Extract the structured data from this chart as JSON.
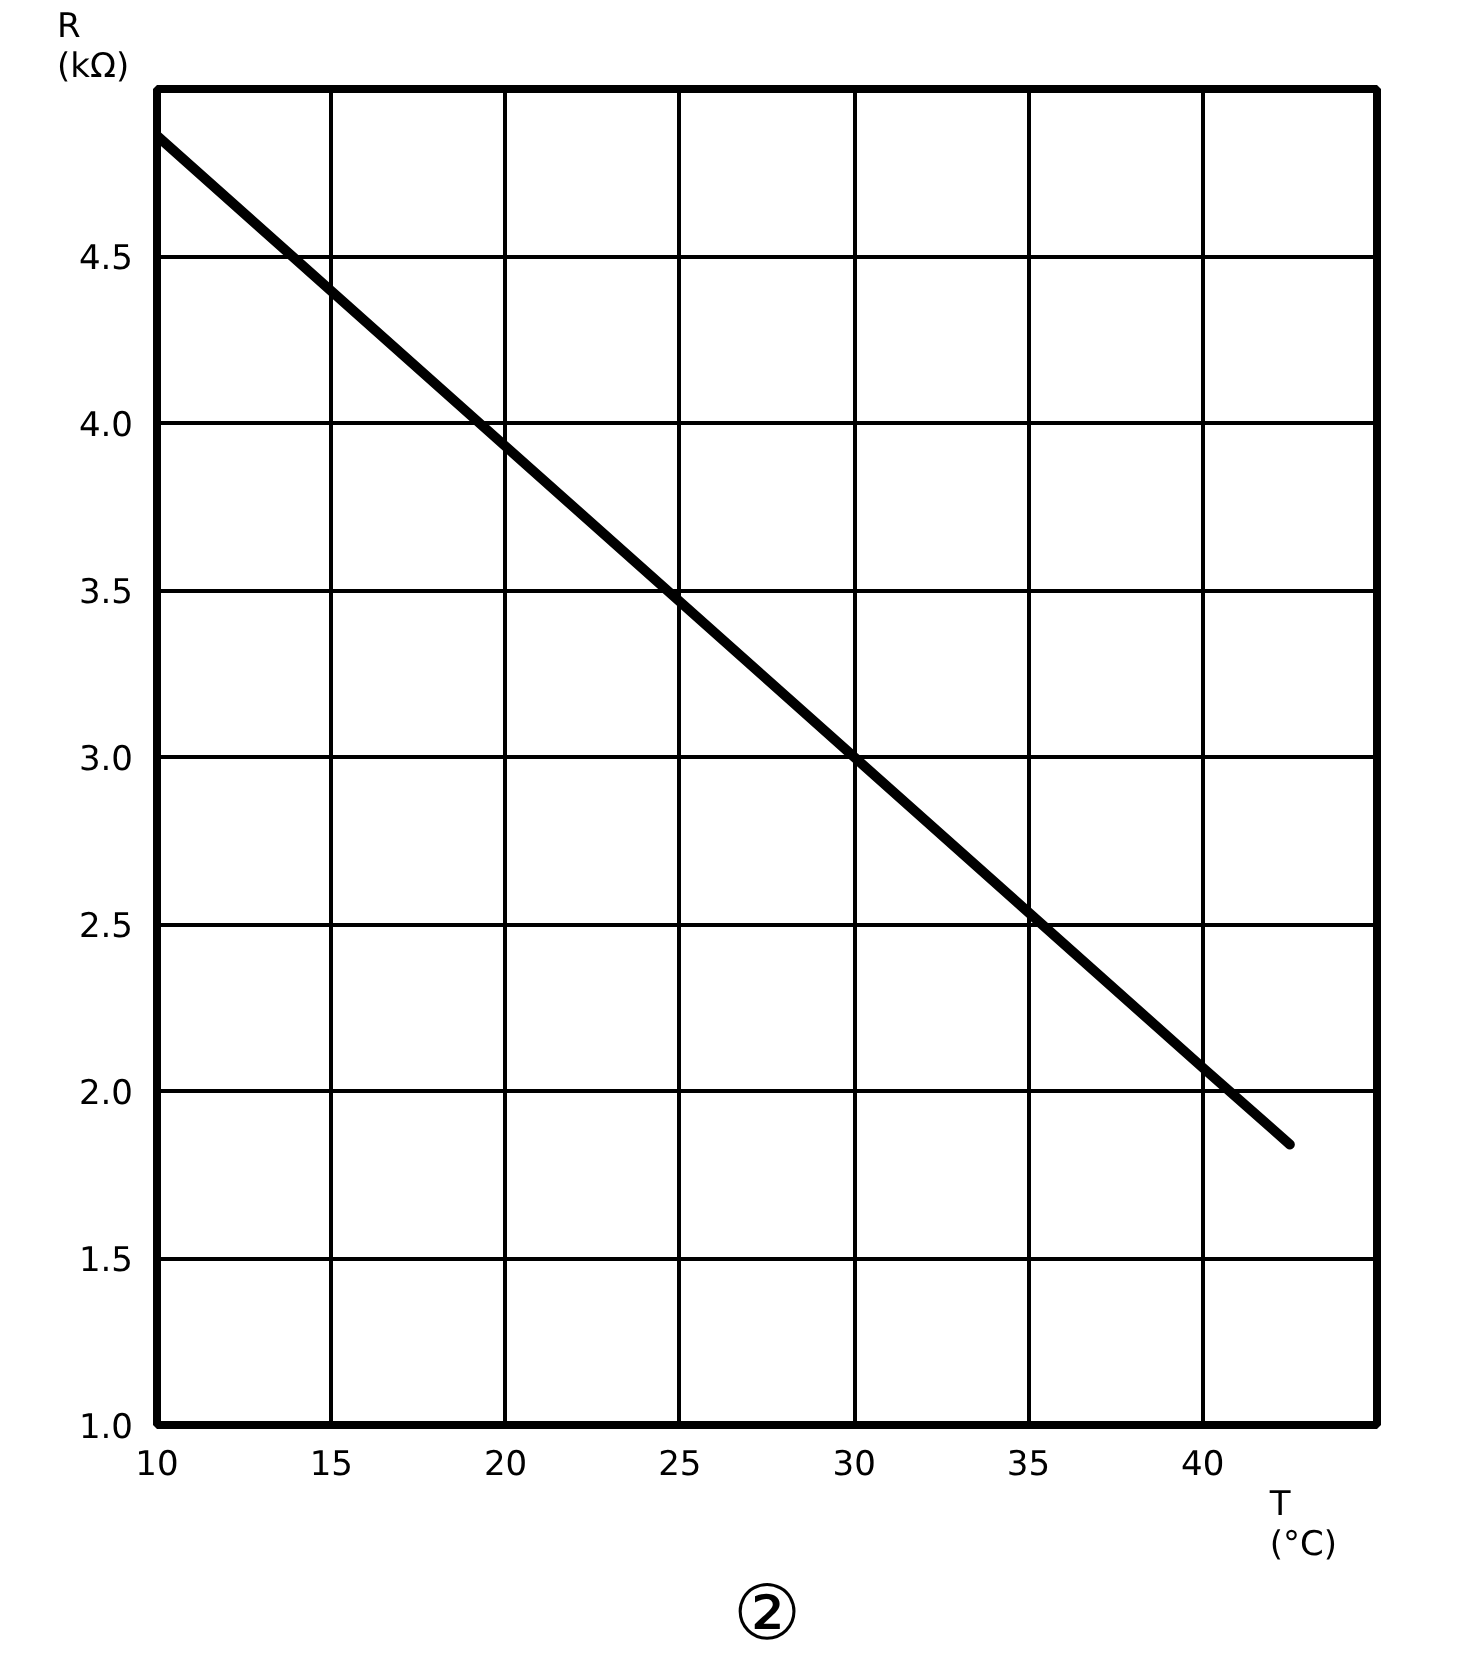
{
  "chart_data": {
    "type": "line",
    "xlabel": "T (°C)",
    "ylabel": "R (kΩ)",
    "annotations": [
      "②"
    ],
    "x": [
      10,
      20,
      30,
      40,
      42.5
    ],
    "series": [
      {
        "color": "#000000",
        "values": [
          4.86,
          3.93,
          3.0,
          2.07,
          1.84
        ]
      }
    ],
    "xlim": [
      10,
      45
    ],
    "ylim": [
      1.0,
      5.0
    ],
    "xticks": [
      10,
      15,
      20,
      25,
      30,
      35,
      40,
      {
        "value": 45,
        "label": null
      }
    ],
    "yticks": [
      {
        "value": 1,
        "label": "1.0"
      },
      1.5,
      {
        "value": 2,
        "label": "2.0"
      },
      2.5,
      {
        "value": 3,
        "label": "3.0"
      },
      3.5,
      {
        "value": 4,
        "label": "4.0"
      },
      4.5,
      {
        "value": 5,
        "label": null
      }
    ],
    "grid": true,
    "line_style": "solid"
  }
}
